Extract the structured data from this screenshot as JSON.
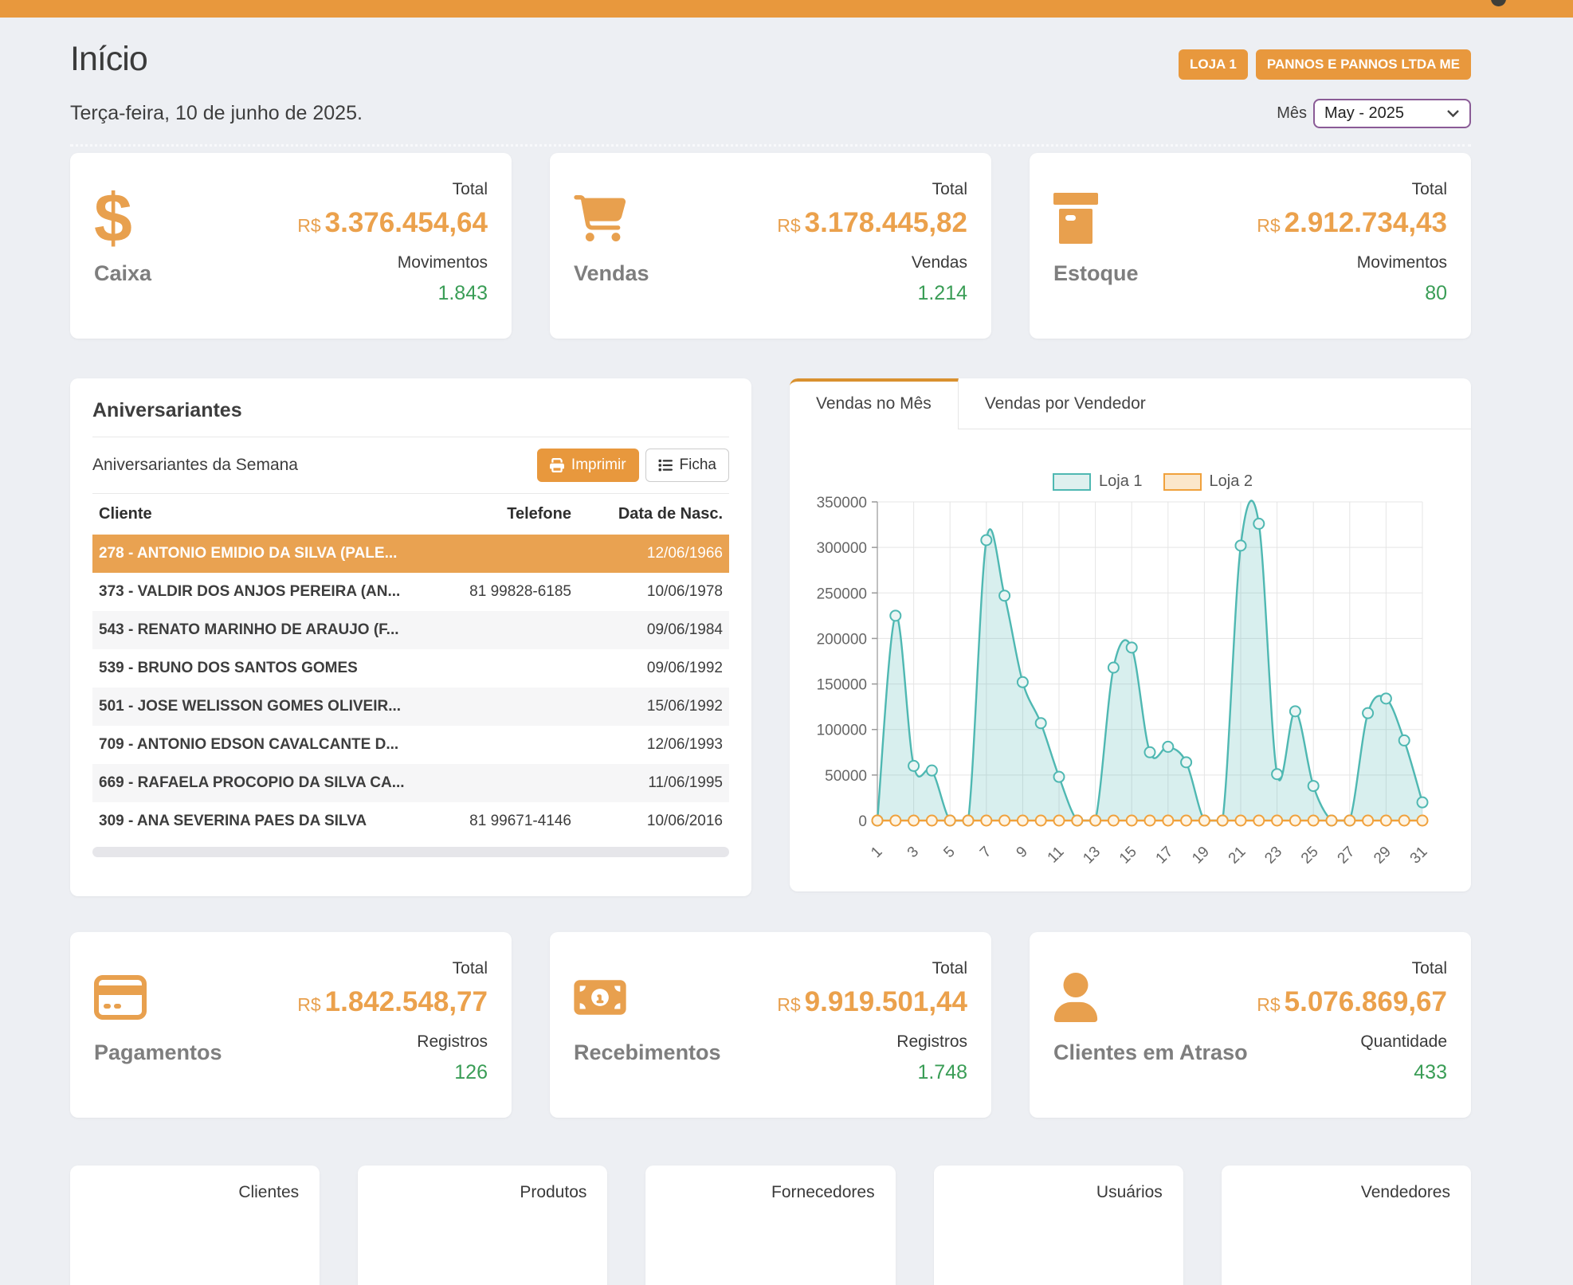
{
  "colors": {
    "accent_orange": "#e8983d",
    "value_orange": "#eba14c",
    "green": "#3a9d56",
    "teal": "#4fb8b2",
    "chart_orange": "#f0a13c",
    "select_border": "#8a5b96",
    "selected_row": "#e9a251"
  },
  "header": {
    "title": "Início",
    "badges": {
      "store": "LOJA 1",
      "company": "PANNOS E PANNOS LTDA ME"
    },
    "date": "Terça-feira, 10 de junho de 2025.",
    "month_label": "Mês",
    "month_value": "May - 2025"
  },
  "kpi_cards": [
    {
      "icon": "dollar-sign",
      "title": "Caixa",
      "total_label": "Total",
      "currency": "R$",
      "total": "3.376.454,64",
      "count_label": "Movimentos",
      "count": "1.843"
    },
    {
      "icon": "shopping-cart",
      "title": "Vendas",
      "total_label": "Total",
      "currency": "R$",
      "total": "3.178.445,82",
      "count_label": "Vendas",
      "count": "1.214"
    },
    {
      "icon": "storage-box",
      "title": "Estoque",
      "total_label": "Total",
      "currency": "R$",
      "total": "2.912.734,43",
      "count_label": "Movimentos",
      "count": "80"
    }
  ],
  "birthdays": {
    "title": "Aniversariantes",
    "subtitle": "Aniversariantes da Semana",
    "print_button": "Imprimir",
    "ficha_button": "Ficha",
    "columns": {
      "cliente": "Cliente",
      "telefone": "Telefone",
      "nascimento": "Data de Nasc."
    },
    "rows": [
      {
        "cliente": "278 - ANTONIO EMIDIO DA SILVA (PALE...",
        "telefone": "",
        "nasc": "12/06/1966",
        "selected": true
      },
      {
        "cliente": "373 - VALDIR DOS ANJOS PEREIRA (AN...",
        "telefone": "81 99828-6185",
        "nasc": "10/06/1978"
      },
      {
        "cliente": "543 - RENATO MARINHO DE ARAUJO (F...",
        "telefone": "",
        "nasc": "09/06/1984"
      },
      {
        "cliente": "539 - BRUNO DOS SANTOS GOMES",
        "telefone": "",
        "nasc": "09/06/1992"
      },
      {
        "cliente": "501 - JOSE WELISSON GOMES OLIVEIR...",
        "telefone": "",
        "nasc": "15/06/1992"
      },
      {
        "cliente": "709 - ANTONIO EDSON CAVALCANTE D...",
        "telefone": "",
        "nasc": "12/06/1993"
      },
      {
        "cliente": "669 - RAFAELA PROCOPIO DA SILVA CA...",
        "telefone": "",
        "nasc": "11/06/1995"
      },
      {
        "cliente": "309 - ANA SEVERINA PAES DA SILVA",
        "telefone": "81 99671-4146",
        "nasc": "10/06/2016"
      }
    ]
  },
  "chart_panel": {
    "tabs": [
      "Vendas no Mês",
      "Vendas por Vendedor"
    ],
    "active_tab": 0
  },
  "chart_data": {
    "type": "area",
    "title": "",
    "xlabel": "",
    "ylabel": "",
    "x": [
      1,
      2,
      3,
      4,
      5,
      6,
      7,
      8,
      9,
      10,
      11,
      12,
      13,
      14,
      15,
      16,
      17,
      18,
      19,
      20,
      21,
      22,
      23,
      24,
      25,
      26,
      27,
      28,
      29,
      30,
      31
    ],
    "series": [
      {
        "name": "Loja 1",
        "color": "#4fb8b2",
        "fill": "#dff0ef",
        "values": [
          0,
          225000,
          60000,
          55000,
          0,
          0,
          308000,
          247000,
          152000,
          107000,
          48000,
          0,
          0,
          168000,
          190000,
          75000,
          81000,
          64000,
          0,
          0,
          302000,
          326000,
          51000,
          120000,
          38000,
          0,
          0,
          118000,
          134000,
          88000,
          20000
        ]
      },
      {
        "name": "Loja 2",
        "color": "#f0a13c",
        "fill": "#fbe7cb",
        "values": [
          0,
          0,
          0,
          0,
          0,
          0,
          0,
          0,
          0,
          0,
          0,
          0,
          0,
          0,
          0,
          0,
          0,
          0,
          0,
          0,
          0,
          0,
          0,
          0,
          0,
          0,
          0,
          0,
          0,
          0,
          0
        ]
      }
    ],
    "ylim": [
      0,
      350000
    ],
    "yticks": [
      0,
      50000,
      100000,
      150000,
      200000,
      250000,
      300000,
      350000
    ],
    "xticks": [
      1,
      3,
      5,
      7,
      9,
      11,
      13,
      15,
      17,
      19,
      21,
      23,
      25,
      27,
      29,
      31
    ],
    "grid": true,
    "legend_position": "top"
  },
  "bottom_cards": [
    {
      "icon": "credit-card",
      "title": "Pagamentos",
      "total_label": "Total",
      "currency": "R$",
      "total": "1.842.548,77",
      "count_label": "Registros",
      "count": "126"
    },
    {
      "icon": "money-bill",
      "title": "Recebimentos",
      "total_label": "Total",
      "currency": "R$",
      "total": "9.919.501,44",
      "count_label": "Registros",
      "count": "1.748"
    },
    {
      "icon": "user",
      "title": "Clientes em Atraso",
      "total_label": "Total",
      "currency": "R$",
      "total": "5.076.869,67",
      "count_label": "Quantidade",
      "count": "433"
    }
  ],
  "footer_cards": [
    {
      "label": "Clientes"
    },
    {
      "label": "Produtos"
    },
    {
      "label": "Fornecedores"
    },
    {
      "label": "Usuários"
    },
    {
      "label": "Vendedores"
    }
  ]
}
